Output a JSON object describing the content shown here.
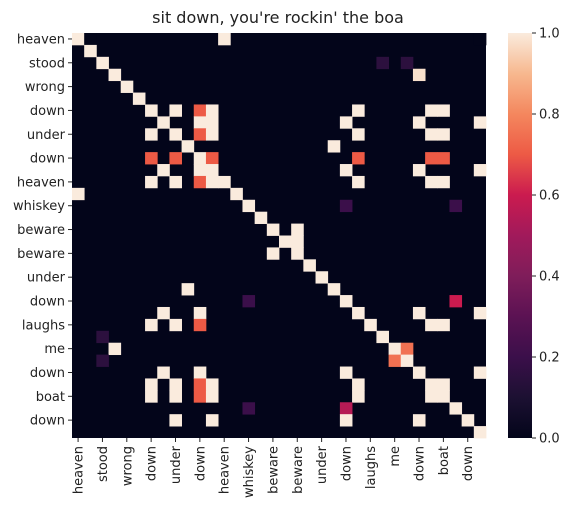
{
  "chart_data": {
    "type": "heatmap",
    "title": "sit down, you're rockin' the boa",
    "row_labels": [
      "heaven",
      "stood",
      "wrong",
      "down",
      "under",
      "down",
      "heaven",
      "whiskey",
      "beware",
      "beware",
      "under",
      "down",
      "laughs",
      "me",
      "down",
      "boat",
      "down"
    ],
    "col_labels": [
      "heaven",
      "stood",
      "wrong",
      "down",
      "under",
      "down",
      "heaven",
      "whiskey",
      "beware",
      "beware",
      "under",
      "down",
      "laughs",
      "me",
      "down",
      "boat",
      "down"
    ],
    "tokens": [
      "heaven",
      "",
      "stood",
      "",
      "wrong",
      "",
      "down",
      "",
      "under",
      "",
      "down",
      "",
      "heaven",
      "",
      "whiskey",
      "",
      "beware",
      "",
      "beware",
      "",
      "under",
      "",
      "down",
      "",
      "laughs",
      "",
      "me",
      "",
      "down",
      "",
      "boat",
      "",
      "down",
      ""
    ],
    "cells": [
      [
        0,
        0,
        1
      ],
      [
        0,
        1,
        0
      ],
      [
        0,
        12,
        1
      ],
      [
        0,
        33,
        0
      ],
      [
        1,
        1,
        1
      ],
      [
        2,
        2,
        1
      ],
      [
        2,
        25,
        0.15
      ],
      [
        2,
        27,
        0.15
      ],
      [
        3,
        3,
        1
      ],
      [
        3,
        28,
        0.98
      ],
      [
        4,
        4,
        1
      ],
      [
        5,
        5,
        1
      ],
      [
        6,
        6,
        1
      ],
      [
        6,
        8,
        1
      ],
      [
        6,
        10,
        0.7
      ],
      [
        6,
        11,
        1
      ],
      [
        6,
        23,
        1
      ],
      [
        6,
        29,
        1
      ],
      [
        6,
        30,
        1
      ],
      [
        7,
        7,
        1
      ],
      [
        7,
        10,
        1
      ],
      [
        7,
        11,
        1
      ],
      [
        7,
        22,
        1
      ],
      [
        7,
        28,
        1
      ],
      [
        7,
        33,
        1
      ],
      [
        8,
        6,
        1
      ],
      [
        8,
        8,
        1
      ],
      [
        8,
        10,
        0.7
      ],
      [
        8,
        11,
        1
      ],
      [
        8,
        23,
        1
      ],
      [
        8,
        29,
        1
      ],
      [
        8,
        30,
        1
      ],
      [
        9,
        9,
        1
      ],
      [
        9,
        21,
        1
      ],
      [
        10,
        6,
        0.7
      ],
      [
        10,
        8,
        0.7
      ],
      [
        10,
        10,
        1
      ],
      [
        10,
        11,
        0.7
      ],
      [
        10,
        23,
        0.7
      ],
      [
        10,
        29,
        0.7
      ],
      [
        10,
        30,
        0.7
      ],
      [
        11,
        7,
        1
      ],
      [
        11,
        10,
        1
      ],
      [
        11,
        11,
        1
      ],
      [
        11,
        22,
        1
      ],
      [
        11,
        28,
        1
      ],
      [
        11,
        33,
        1
      ],
      [
        12,
        6,
        1
      ],
      [
        12,
        8,
        1
      ],
      [
        12,
        10,
        0.7
      ],
      [
        12,
        11,
        1
      ],
      [
        12,
        12,
        1
      ],
      [
        12,
        23,
        1
      ],
      [
        12,
        29,
        1
      ],
      [
        12,
        30,
        1
      ],
      [
        13,
        0,
        1
      ],
      [
        13,
        13,
        1
      ],
      [
        14,
        14,
        1
      ],
      [
        14,
        22,
        0.2
      ],
      [
        14,
        31,
        0.2
      ],
      [
        15,
        15,
        1
      ],
      [
        16,
        16,
        1
      ],
      [
        16,
        18,
        1
      ],
      [
        17,
        17,
        1
      ],
      [
        17,
        18,
        1
      ],
      [
        18,
        16,
        1
      ],
      [
        18,
        18,
        1
      ],
      [
        19,
        19,
        1
      ],
      [
        20,
        20,
        1
      ],
      [
        21,
        9,
        1
      ],
      [
        21,
        21,
        1
      ],
      [
        22,
        14,
        0.2
      ],
      [
        22,
        22,
        1
      ],
      [
        22,
        31,
        0.6
      ],
      [
        23,
        7,
        1
      ],
      [
        23,
        10,
        1
      ],
      [
        23,
        23,
        1
      ],
      [
        23,
        28,
        1
      ],
      [
        23,
        33,
        1
      ],
      [
        24,
        6,
        1
      ],
      [
        24,
        8,
        1
      ],
      [
        24,
        10,
        0.7
      ],
      [
        24,
        24,
        1
      ],
      [
        24,
        29,
        1
      ],
      [
        24,
        30,
        1
      ],
      [
        25,
        2,
        0.15
      ],
      [
        25,
        25,
        1
      ],
      [
        26,
        3,
        1
      ],
      [
        26,
        26,
        1
      ],
      [
        26,
        27,
        0.75
      ],
      [
        27,
        2,
        0.15
      ],
      [
        27,
        26,
        0.75
      ],
      [
        27,
        27,
        1
      ],
      [
        28,
        7,
        1
      ],
      [
        28,
        10,
        1
      ],
      [
        28,
        22,
        1
      ],
      [
        28,
        28,
        1
      ],
      [
        28,
        33,
        1
      ],
      [
        29,
        6,
        1
      ],
      [
        29,
        8,
        1
      ],
      [
        29,
        10,
        0.7
      ],
      [
        29,
        11,
        1
      ],
      [
        29,
        23,
        1
      ],
      [
        29,
        29,
        1
      ],
      [
        29,
        30,
        1
      ],
      [
        30,
        6,
        1
      ],
      [
        30,
        8,
        1
      ],
      [
        30,
        10,
        0.7
      ],
      [
        30,
        11,
        1
      ],
      [
        30,
        23,
        1
      ],
      [
        30,
        29,
        1
      ],
      [
        30,
        30,
        1
      ],
      [
        31,
        14,
        0.2
      ],
      [
        31,
        22,
        0.55
      ],
      [
        31,
        31,
        1
      ],
      [
        32,
        8,
        1
      ],
      [
        32,
        11,
        1
      ],
      [
        32,
        22,
        1
      ],
      [
        32,
        28,
        1
      ],
      [
        32,
        32,
        1
      ],
      [
        33,
        33,
        1
      ]
    ],
    "colorbar": {
      "min": 0,
      "max": 1,
      "ticks": [
        0.0,
        0.2,
        0.4,
        0.6,
        0.8,
        1.0
      ],
      "colormap": "rocket"
    },
    "grid": false
  }
}
